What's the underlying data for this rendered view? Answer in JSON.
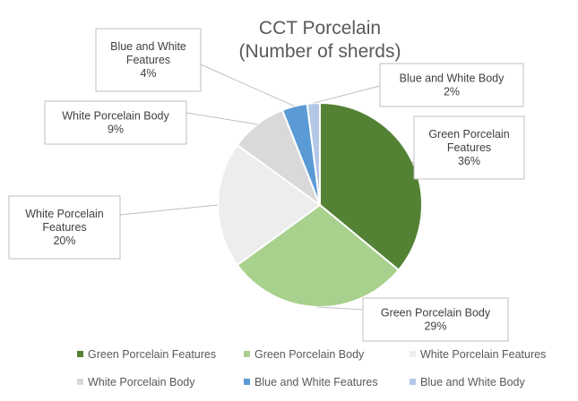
{
  "chart_data": {
    "type": "pie",
    "title": [
      "CCT Porcelain",
      "(Number of sherds)"
    ],
    "slices": [
      {
        "name": "Green Porcelain Features",
        "value": 36,
        "label": "36%",
        "color": "#548235"
      },
      {
        "name": "Green Porcelain Body",
        "value": 29,
        "label": "29%",
        "color": "#a9d18e"
      },
      {
        "name": "White Porcelain Features",
        "value": 20,
        "label": "20%",
        "color": "#ededed"
      },
      {
        "name": "White Porcelain Body",
        "value": 9,
        "label": "9%",
        "color": "#d9d9d9"
      },
      {
        "name": "Blue and White Features",
        "value": 4,
        "label": "4%",
        "color": "#5b9bd5"
      },
      {
        "name": "Blue and White Body",
        "value": 2,
        "label": "2%",
        "color": "#b4c7e7"
      }
    ],
    "legend_position": "bottom"
  }
}
